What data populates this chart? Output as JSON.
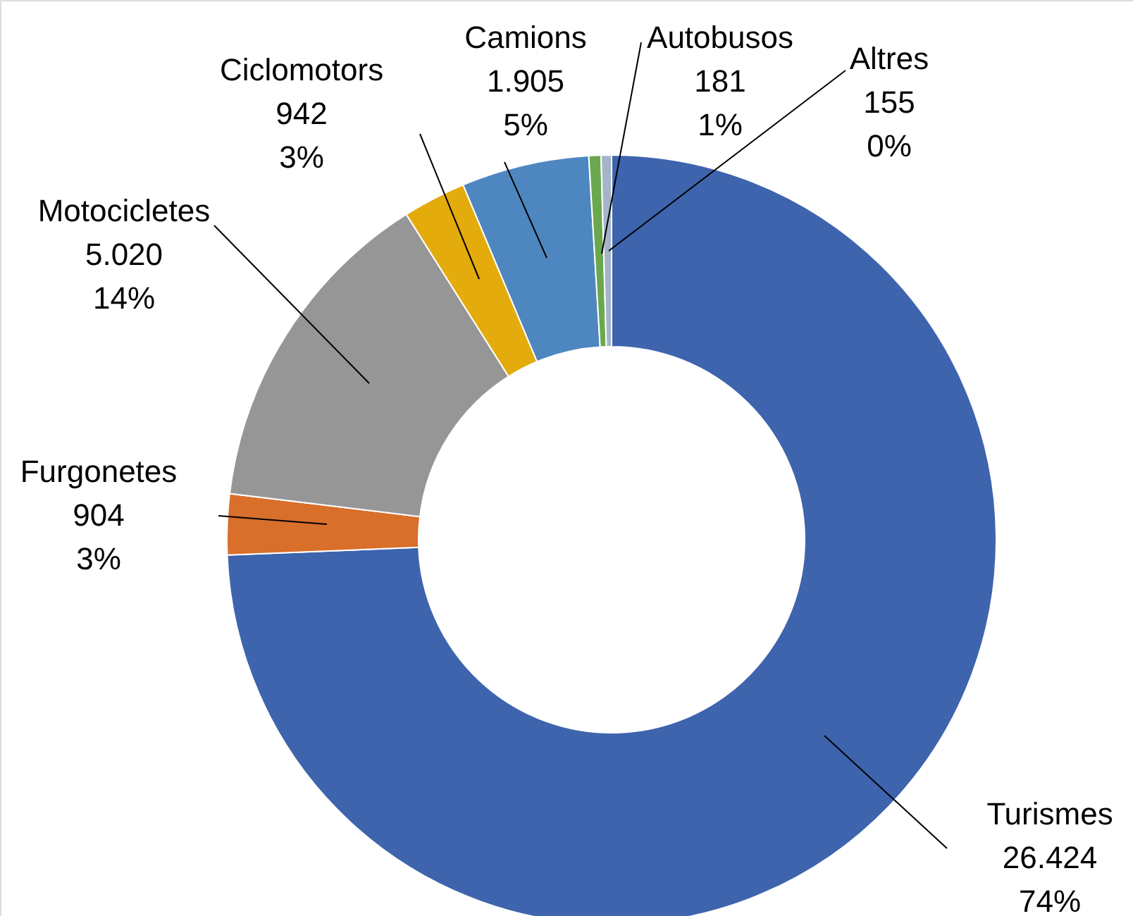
{
  "chart_data": {
    "type": "donut",
    "categories": [
      "Turismes",
      "Furgonetes",
      "Motocicletes",
      "Ciclomotors",
      "Camions",
      "Autobusos",
      "Altres"
    ],
    "values": [
      26424,
      904,
      5020,
      942,
      1905,
      181,
      155
    ],
    "colors": [
      "#3e64ad",
      "#d86f2b",
      "#969696",
      "#e3ab0c",
      "#4e87c0",
      "#6aa84f",
      "#a5b4c8"
    ],
    "value_labels": [
      "26.424\n74%",
      "904\n3%",
      "5.020\n14%",
      "942\n3%",
      "1.905\n5%",
      "181\n1%",
      "155\n0%"
    ]
  }
}
